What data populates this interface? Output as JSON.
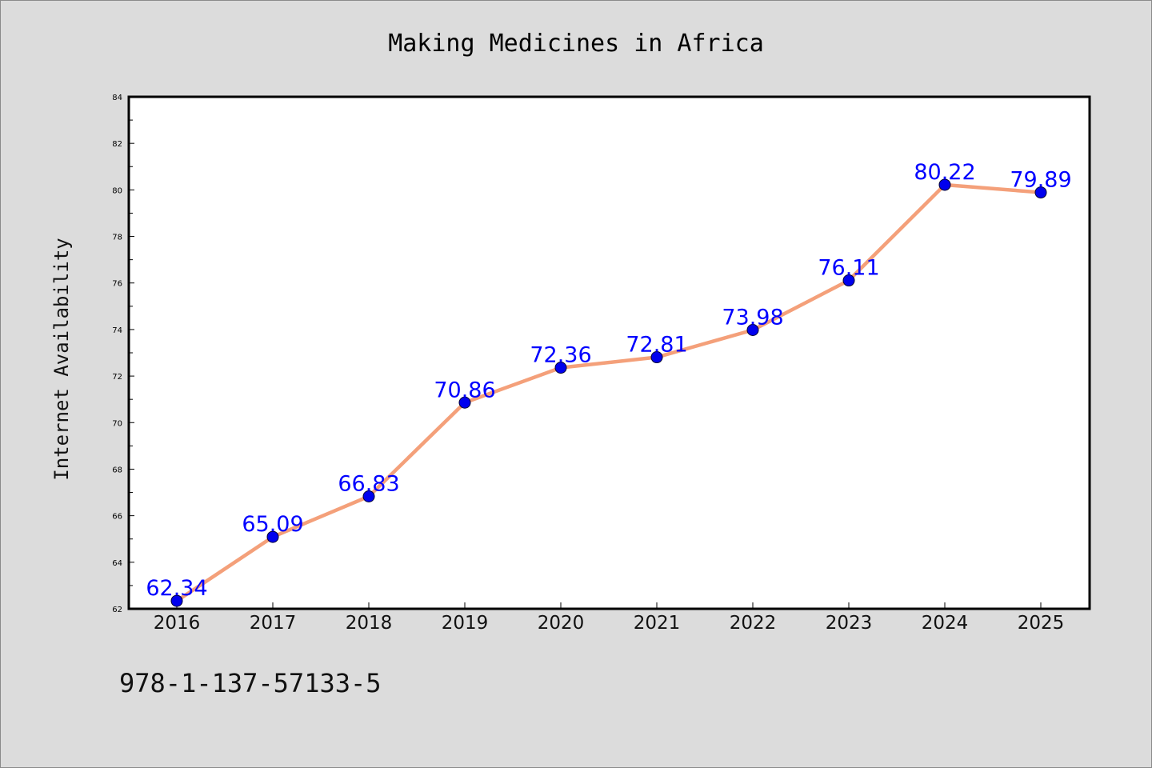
{
  "chart_data": {
    "type": "line",
    "title": "Making Medicines in Africa",
    "xlabel": "",
    "ylabel": "Internet Availability",
    "categories": [
      "2016",
      "2017",
      "2018",
      "2019",
      "2020",
      "2021",
      "2022",
      "2023",
      "2024",
      "2025"
    ],
    "series": [
      {
        "values": [
          62.34,
          65.09,
          66.83,
          70.86,
          72.36,
          72.81,
          73.98,
          76.11,
          80.22,
          79.89
        ],
        "line_color": "#f4a07a",
        "marker_color": "#0000ee",
        "label_color": "#0000ff"
      }
    ],
    "ylim": [
      62,
      84
    ],
    "yticks": [
      "62",
      "64",
      "66",
      "68",
      "70",
      "72",
      "74",
      "76",
      "78",
      "80",
      "82",
      "84"
    ],
    "ytick_values": [
      62,
      64,
      66,
      68,
      70,
      72,
      74,
      76,
      78,
      80,
      82,
      84
    ],
    "data_labels": [
      "62.34",
      "65.09",
      "66.83",
      "70.86",
      "72.36",
      "72.81",
      "73.98",
      "76.11",
      "80.22",
      "79.89"
    ],
    "grid": false,
    "legend": "none"
  },
  "footer": {
    "code": "978-1-137-57133-5"
  }
}
